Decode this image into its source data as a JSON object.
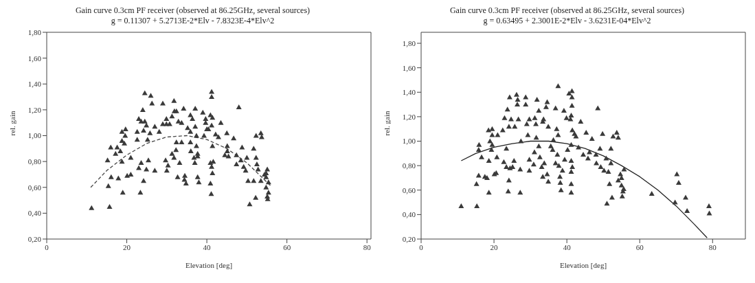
{
  "chart_data": [
    {
      "type": "scatter",
      "title": "Gain curve 0.3cm PF receiver  (observed at 86.25GHz, several sources)",
      "subtitle": "g = 0.11307 + 5.2713E-2*Elv  - 7.8323E-4*Elv^2",
      "xlabel": "Elevation [deg]",
      "ylabel": "rel. gain",
      "xlim": [
        0,
        81
      ],
      "ylim": [
        0.2,
        1.8
      ],
      "xticks": [
        0,
        20,
        40,
        60,
        80
      ],
      "yticks": [
        {
          "value": 0.2,
          "label": "0,20"
        },
        {
          "value": 0.4,
          "label": "0,40"
        },
        {
          "value": 0.6,
          "label": "0,60"
        },
        {
          "value": 0.8,
          "label": "0,80"
        },
        {
          "value": 1.0,
          "label": "1,00"
        },
        {
          "value": 1.2,
          "label": "1,20"
        },
        {
          "value": 1.4,
          "label": "1,40"
        },
        {
          "value": 1.6,
          "label": "1,60"
        },
        {
          "value": 1.8,
          "label": "1,80"
        }
      ],
      "grid": false,
      "legend": false,
      "series": [
        {
          "marker": "triangle",
          "color": "#3a3a3a",
          "x": [
            11.2,
            15.7,
            15.4,
            16.1,
            17.9,
            19.0,
            15.2,
            16.0,
            17.6,
            18.8,
            19.7,
            19.6,
            18.8,
            19.4,
            18.4,
            18.8,
            17.2,
            20.1,
            21.0,
            21.0,
            22.6,
            22.6,
            23.0,
            23.4,
            24.0,
            23.6,
            24.2,
            23.0,
            23.6,
            24.9,
            25.4,
            25.2,
            24.5,
            24.2,
            24.9,
            24.5,
            26.0,
            26.3,
            27.0,
            25.8,
            27.0,
            28.1,
            29.0,
            29.0,
            29.9,
            29.9,
            30.0,
            29.7,
            30.3,
            30.7,
            31.3,
            31.3,
            31.8,
            31.9,
            32.4,
            32.4,
            31.8,
            32.3,
            32.7,
            33.2,
            32.9,
            33.7,
            34.2,
            33.7,
            34.5,
            34.4,
            34.8,
            35.2,
            35.9,
            35.9,
            36.0,
            35.9,
            36.4,
            36.8,
            37.1,
            37.1,
            37.4,
            37.4,
            37.7,
            37.7,
            37.7,
            38.0,
            37.0,
            39.0,
            39.7,
            40.0,
            39.3,
            39.7,
            40.4,
            40.9,
            41.4,
            41.2,
            41.2,
            41.2,
            41.4,
            40.9,
            41.2,
            41.4,
            40.9,
            41.1,
            41.6,
            42.2,
            42.9,
            43.5,
            45.1,
            45.0,
            45.1,
            44.5,
            45.4,
            46.7,
            47.4,
            47.4,
            48.0,
            48.5,
            48.8,
            49.2,
            49.7,
            50.0,
            50.3,
            50.7,
            51.7,
            51.7,
            52.2,
            52.3,
            52.3,
            53.5,
            53.7,
            52.8,
            52.5,
            53.5,
            55.1,
            54.8,
            54.8,
            55.1,
            55.2,
            55.4,
            55.4,
            54.4,
            54.8
          ],
          "values": [
            0.44,
            0.45,
            0.61,
            0.68,
            0.67,
            0.56,
            0.81,
            0.91,
            0.91,
            1.03,
            1.05,
            1.0,
            0.96,
            0.94,
            0.88,
            0.8,
            0.86,
            0.69,
            0.7,
            0.83,
            0.97,
            1.03,
            1.13,
            0.56,
            1.2,
            1.11,
            0.65,
            0.75,
            0.79,
            0.74,
            0.81,
            0.97,
            1.11,
            1.04,
            1.08,
            1.33,
            1.31,
            1.25,
            1.07,
            1.02,
            0.73,
            1.03,
            1.09,
            1.25,
            1.09,
            1.13,
            0.73,
            0.81,
            0.77,
            1.09,
            0.86,
            1.15,
            1.27,
            1.19,
            0.95,
            1.19,
            0.83,
            0.89,
            0.68,
            0.79,
            1.11,
            1.1,
            1.21,
            0.95,
            0.69,
            0.66,
            0.63,
            1.06,
            1.03,
            0.95,
            0.88,
            1.16,
            1.13,
            0.83,
            1.21,
            1.07,
            1.0,
            0.92,
            0.86,
            0.84,
            0.68,
            0.64,
            0.79,
            1.18,
            1.13,
            1.05,
            1.0,
            1.1,
            1.05,
            1.16,
            1.14,
            1.08,
            1.34,
            1.3,
            0.92,
            0.79,
            0.76,
            0.71,
            0.63,
            0.55,
            0.8,
            1.01,
            0.99,
            1.1,
            0.88,
            1.02,
            0.92,
            0.85,
            0.84,
            0.98,
            0.78,
            0.85,
            1.22,
            0.81,
            0.91,
            0.76,
            0.73,
            0.83,
            0.65,
            0.47,
            0.9,
            0.65,
            0.52,
            1.0,
            0.83,
            1.02,
            0.99,
            0.74,
            0.78,
            0.65,
            0.74,
            0.68,
            0.6,
            0.53,
            0.51,
            0.56,
            0.64,
            0.7,
            0.71
          ]
        },
        {
          "type": "line",
          "color": "#444444",
          "line_style": "dashed",
          "x": [
            11,
            15,
            20,
            25,
            30,
            35,
            40,
            45,
            50,
            56
          ],
          "values": [
            0.6,
            0.73,
            0.85,
            0.94,
            0.99,
            1.0,
            0.97,
            0.9,
            0.79,
            0.61
          ]
        }
      ]
    },
    {
      "type": "scatter",
      "title": "Gain curve 0.3cm PF receiver  (observed at 86.25GHz, several sources)",
      "subtitle": "g = 0.63495 + 2.3001E-2*Elv  - 3.6231E-04*Elv^2",
      "xlabel": "Elevation [deg]",
      "ylabel": "rel. gain",
      "xlim": [
        0,
        89
      ],
      "ylim": [
        0.2,
        1.89
      ],
      "xticks": [
        0,
        20,
        40,
        60,
        80
      ],
      "yticks": [
        {
          "value": 0.2,
          "label": "0,20"
        },
        {
          "value": 0.4,
          "label": "0,40"
        },
        {
          "value": 0.6,
          "label": "0,60"
        },
        {
          "value": 0.8,
          "label": "0,80"
        },
        {
          "value": 1.0,
          "label": "1,00"
        },
        {
          "value": 1.2,
          "label": "1,20"
        },
        {
          "value": 1.4,
          "label": "1,40"
        },
        {
          "value": 1.6,
          "label": "1,60"
        },
        {
          "value": 1.8,
          "label": "1,80"
        }
      ],
      "grid": false,
      "legend": false,
      "series": [
        {
          "marker": "triangle",
          "color": "#3a3a3a",
          "x": [
            11.0,
            15.3,
            15.2,
            15.8,
            15.9,
            15.8,
            16.6,
            17.5,
            18.1,
            18.6,
            18.6,
            18.5,
            19.5,
            19.5,
            18.9,
            19.5,
            19.3,
            20.1,
            20.6,
            20.8,
            21.0,
            22.4,
            22.9,
            23.4,
            23.7,
            23.9,
            24.1,
            22.7,
            23.4,
            24.4,
            25.1,
            24.3,
            24.1,
            24.7,
            25.7,
            26.2,
            26.5,
            26.4,
            25.5,
            26.7,
            27.2,
            27.2,
            27.4,
            28.7,
            28.7,
            29.0,
            29.3,
            29.7,
            29.7,
            29.7,
            30.9,
            31.1,
            31.2,
            31.5,
            31.6,
            31.8,
            32.3,
            32.3,
            32.6,
            33.1,
            33.4,
            33.6,
            33.4,
            33.8,
            34.3,
            34.6,
            34.6,
            34.9,
            34.9,
            35.6,
            36.3,
            36.1,
            36.9,
            36.9,
            37.2,
            37.4,
            37.6,
            37.6,
            37.8,
            38.1,
            38.2,
            38.4,
            38.8,
            39.2,
            39.4,
            39.9,
            40.2,
            40.6,
            41.0,
            41.4,
            41.4,
            41.4,
            41.2,
            41.5,
            41.2,
            41.2,
            41.5,
            41.2,
            41.2,
            41.2,
            42.1,
            42.5,
            43.2,
            43.8,
            44.5,
            45.3,
            45.8,
            46.2,
            46.9,
            48.0,
            48.5,
            48.1,
            49.1,
            49.3,
            49.8,
            50.2,
            50.8,
            51.0,
            51.4,
            51.7,
            52.1,
            52.1,
            52.4,
            52.7,
            53.7,
            54.1,
            54.1,
            54.7,
            55.0,
            55.0,
            55.4,
            55.2,
            55.6,
            55.7,
            63.3,
            69.7,
            70.2,
            70.7,
            72.6,
            73.0,
            79.0,
            79.1
          ],
          "values": [
            0.47,
            0.47,
            0.65,
            0.72,
            0.97,
            0.93,
            0.87,
            0.71,
            0.7,
            0.58,
            0.84,
            1.09,
            1.1,
            1.05,
            1.0,
            0.97,
            0.93,
            0.73,
            0.74,
            0.87,
            1.05,
            1.09,
            1.19,
            0.94,
            1.26,
            0.59,
            0.68,
            0.83,
            0.79,
            0.78,
            0.79,
            1.36,
            1.12,
            1.18,
            1.12,
            1.38,
            1.34,
            1.3,
            0.84,
            1.18,
            0.58,
            0.77,
            1.0,
            1.36,
            1.3,
            1.14,
            1.05,
            1.18,
            0.76,
            0.85,
            0.81,
            0.91,
            1.19,
            1.14,
            1.03,
            1.34,
            1.25,
            0.96,
            0.87,
            0.79,
            1.16,
            1.18,
            0.71,
            0.82,
            1.28,
            1.32,
            0.73,
            0.67,
            1.12,
            0.96,
            1.01,
            0.93,
            1.27,
            0.82,
            1.1,
            0.89,
            1.45,
            1.05,
            0.8,
            0.71,
            0.66,
            0.6,
            0.76,
            1.25,
            0.85,
            1.19,
            0.93,
            1.39,
            1.18,
            1.41,
            1.36,
            1.29,
            1.21,
            1.09,
            0.97,
            0.84,
            0.79,
            0.75,
            0.65,
            0.58,
            1.06,
            1.04,
            0.95,
            1.16,
            0.89,
            1.07,
            0.86,
            0.91,
            1.02,
            0.89,
            1.27,
            0.82,
            0.94,
            0.79,
            1.06,
            0.76,
            0.86,
            0.49,
            0.75,
            0.65,
            0.94,
            0.82,
            0.54,
            1.04,
            1.07,
            1.03,
            0.68,
            0.73,
            0.7,
            0.64,
            0.59,
            0.55,
            0.61,
            0.77,
            0.57,
            0.5,
            0.73,
            0.66,
            0.54,
            0.43,
            0.47,
            0.41
          ]
        },
        {
          "type": "line",
          "color": "#222222",
          "line_style": "solid",
          "x": [
            11,
            15,
            20,
            25,
            30,
            35,
            40,
            45,
            50,
            55,
            60,
            65,
            70,
            75,
            78.5
          ],
          "values": [
            0.84,
            0.9,
            0.95,
            0.98,
            1.0,
            1.0,
            0.98,
            0.94,
            0.88,
            0.8,
            0.71,
            0.6,
            0.47,
            0.32,
            0.21
          ]
        }
      ]
    }
  ]
}
